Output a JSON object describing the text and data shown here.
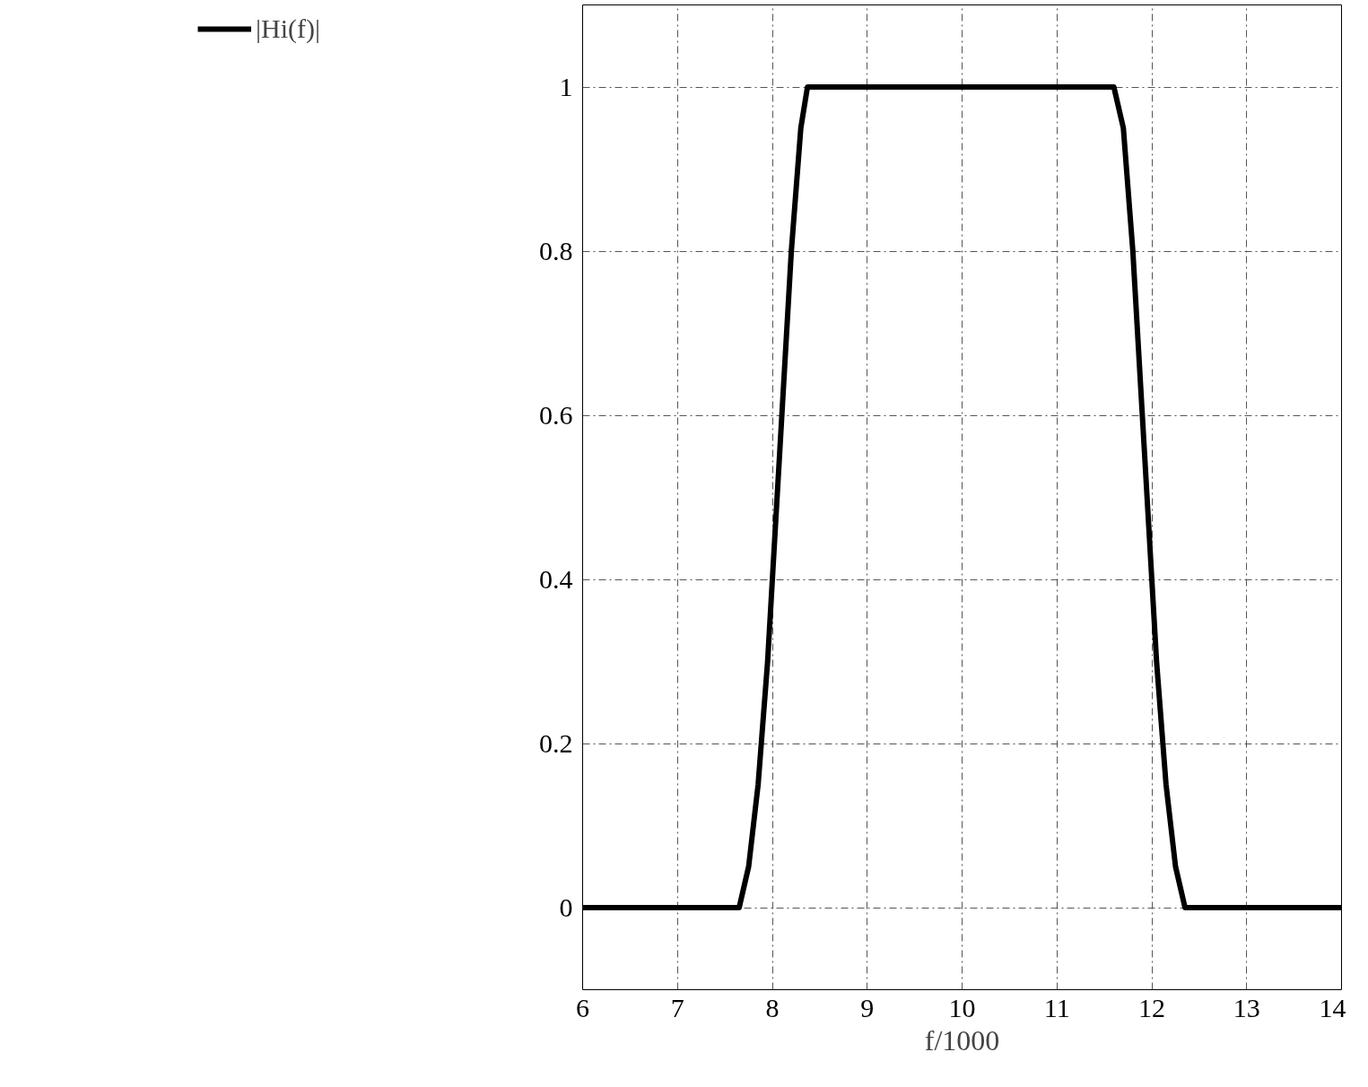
{
  "chart_data": {
    "type": "line",
    "xlabel": "f/1000",
    "x": [
      6,
      7.65,
      7.75,
      7.85,
      7.95,
      8.0,
      8.1,
      8.2,
      8.3,
      8.37,
      11.6,
      11.7,
      11.8,
      11.9,
      12.0,
      12.05,
      12.15,
      12.25,
      12.35,
      14
    ],
    "series": [
      {
        "name": "|Hi(f)|",
        "color": "#000000",
        "values": [
          0,
          0,
          0.05,
          0.15,
          0.3,
          0.4,
          0.6,
          0.8,
          0.95,
          1,
          1,
          0.95,
          0.8,
          0.6,
          0.4,
          0.3,
          0.15,
          0.05,
          0,
          0
        ]
      }
    ],
    "xlim": [
      6,
      14
    ],
    "ylim": [
      -0.1,
      1.1
    ],
    "xticks": [
      6,
      7,
      8,
      9,
      10,
      11,
      12,
      13,
      14
    ],
    "yticks": [
      0,
      0.2,
      0.4,
      0.6,
      0.8,
      1
    ],
    "grid": true,
    "legend": "left",
    "line_style": "solid"
  }
}
